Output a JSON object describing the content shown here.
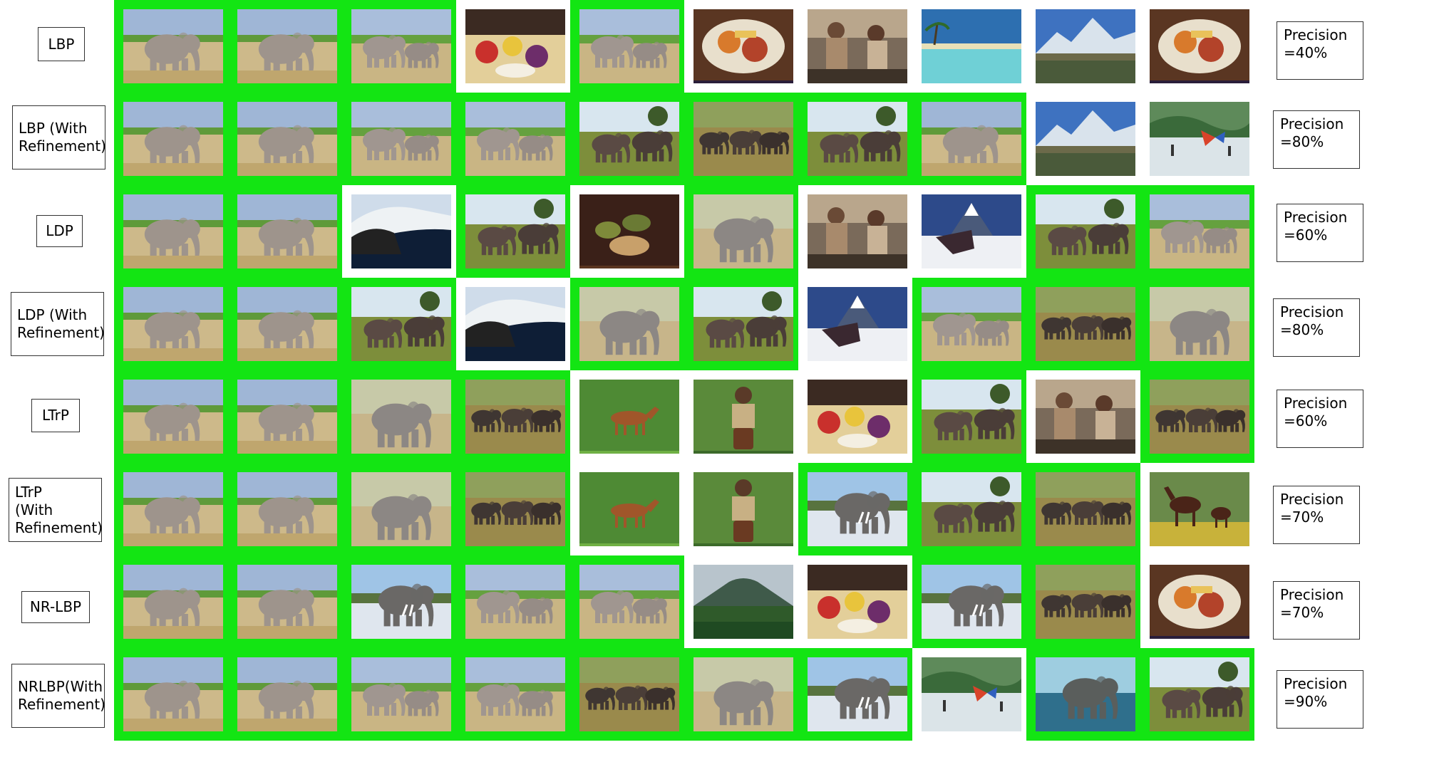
{
  "colors": {
    "relevant_highlight": "#13e513",
    "background": "#ffffff"
  },
  "rows": [
    {
      "method": "LBP",
      "precision": "Precision\n=40%",
      "results": [
        {
          "subject": "elephant",
          "relevant": true
        },
        {
          "subject": "elephant",
          "relevant": true
        },
        {
          "subject": "elephant-pair",
          "relevant": true
        },
        {
          "subject": "food-fruit",
          "relevant": false
        },
        {
          "subject": "elephant-pair",
          "relevant": true
        },
        {
          "subject": "food-plate",
          "relevant": false
        },
        {
          "subject": "people",
          "relevant": false
        },
        {
          "subject": "beach",
          "relevant": false
        },
        {
          "subject": "mountain",
          "relevant": false
        },
        {
          "subject": "food-plate",
          "relevant": false
        }
      ]
    },
    {
      "method": "LBP (With\nRefinement)",
      "precision": "Precision\n=80%",
      "results": [
        {
          "subject": "elephant",
          "relevant": true
        },
        {
          "subject": "elephant",
          "relevant": true
        },
        {
          "subject": "elephant-pair",
          "relevant": true
        },
        {
          "subject": "elephant-pair",
          "relevant": true
        },
        {
          "subject": "elephant-dark",
          "relevant": true
        },
        {
          "subject": "elephant-herd",
          "relevant": true
        },
        {
          "subject": "elephant-dark",
          "relevant": true
        },
        {
          "subject": "elephant",
          "relevant": true
        },
        {
          "subject": "mountain",
          "relevant": false
        },
        {
          "subject": "beach-people",
          "relevant": false
        }
      ]
    },
    {
      "method": "LDP",
      "precision": "Precision\n=60%",
      "results": [
        {
          "subject": "elephant",
          "relevant": true
        },
        {
          "subject": "elephant",
          "relevant": true
        },
        {
          "subject": "snow-rock",
          "relevant": false
        },
        {
          "subject": "elephant-dark",
          "relevant": true
        },
        {
          "subject": "food-dark",
          "relevant": false
        },
        {
          "subject": "elephant-grey",
          "relevant": true
        },
        {
          "subject": "people",
          "relevant": false
        },
        {
          "subject": "snow-mountain",
          "relevant": false
        },
        {
          "subject": "elephant-dark",
          "relevant": true
        },
        {
          "subject": "elephant-pair",
          "relevant": true
        }
      ]
    },
    {
      "method": "LDP (With\nRefinement)",
      "precision": "Precision\n=80%",
      "results": [
        {
          "subject": "elephant",
          "relevant": true
        },
        {
          "subject": "elephant",
          "relevant": true
        },
        {
          "subject": "elephant-dark",
          "relevant": true
        },
        {
          "subject": "snow-rock",
          "relevant": false
        },
        {
          "subject": "elephant-grey",
          "relevant": true
        },
        {
          "subject": "elephant-dark",
          "relevant": true
        },
        {
          "subject": "snow-mountain",
          "relevant": false
        },
        {
          "subject": "elephant-pair",
          "relevant": true
        },
        {
          "subject": "elephant-herd",
          "relevant": true
        },
        {
          "subject": "elephant-grey",
          "relevant": true
        }
      ]
    },
    {
      "method": "LTrP",
      "precision": "Precision\n=60%",
      "results": [
        {
          "subject": "elephant",
          "relevant": true
        },
        {
          "subject": "elephant",
          "relevant": true
        },
        {
          "subject": "elephant-grey",
          "relevant": true
        },
        {
          "subject": "elephant-herd",
          "relevant": true
        },
        {
          "subject": "horse",
          "relevant": false
        },
        {
          "subject": "person-drum",
          "relevant": false
        },
        {
          "subject": "food-fruit",
          "relevant": false
        },
        {
          "subject": "elephant-dark",
          "relevant": true
        },
        {
          "subject": "people",
          "relevant": false
        },
        {
          "subject": "elephant-herd",
          "relevant": true
        }
      ]
    },
    {
      "method": "LTrP\n(With\nRefinement)",
      "precision": "Precision\n=70%",
      "results": [
        {
          "subject": "elephant",
          "relevant": true
        },
        {
          "subject": "elephant",
          "relevant": true
        },
        {
          "subject": "elephant-grey",
          "relevant": true
        },
        {
          "subject": "elephant-herd",
          "relevant": true
        },
        {
          "subject": "horse",
          "relevant": false
        },
        {
          "subject": "person-drum",
          "relevant": false
        },
        {
          "subject": "elephant-snow",
          "relevant": true
        },
        {
          "subject": "elephant-dark",
          "relevant": true
        },
        {
          "subject": "elephant-herd",
          "relevant": true
        },
        {
          "subject": "horses",
          "relevant": false
        }
      ]
    },
    {
      "method": "NR-LBP",
      "precision": "Precision\n=70%",
      "results": [
        {
          "subject": "elephant",
          "relevant": true
        },
        {
          "subject": "elephant",
          "relevant": true
        },
        {
          "subject": "elephant-snow",
          "relevant": true
        },
        {
          "subject": "elephant-pair",
          "relevant": true
        },
        {
          "subject": "elephant-pair",
          "relevant": true
        },
        {
          "subject": "mountain-green",
          "relevant": false
        },
        {
          "subject": "food-fruit",
          "relevant": false
        },
        {
          "subject": "elephant-snow",
          "relevant": true
        },
        {
          "subject": "elephant-herd",
          "relevant": true
        },
        {
          "subject": "food-plate",
          "relevant": false
        }
      ]
    },
    {
      "method": "NRLBP(With\nRefinement)",
      "precision": "Precision\n=90%",
      "results": [
        {
          "subject": "elephant",
          "relevant": true
        },
        {
          "subject": "elephant",
          "relevant": true
        },
        {
          "subject": "elephant-pair",
          "relevant": true
        },
        {
          "subject": "elephant-pair",
          "relevant": true
        },
        {
          "subject": "elephant-herd",
          "relevant": true
        },
        {
          "subject": "elephant-grey",
          "relevant": true
        },
        {
          "subject": "elephant-snow",
          "relevant": true
        },
        {
          "subject": "beach-people",
          "relevant": false
        },
        {
          "subject": "elephant-water",
          "relevant": true
        },
        {
          "subject": "elephant-dark",
          "relevant": true
        }
      ]
    }
  ]
}
